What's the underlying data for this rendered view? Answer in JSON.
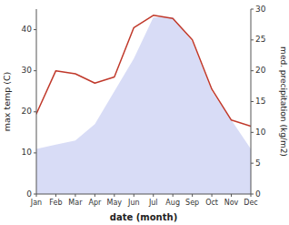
{
  "chart_data": {
    "type": "area",
    "categories": [
      "Jan",
      "Feb",
      "Mar",
      "Apr",
      "May",
      "Jun",
      "Jul",
      "Aug",
      "Sep",
      "Oct",
      "Nov",
      "Dec"
    ],
    "series": [
      {
        "type": "area",
        "color": "#b8c0ee",
        "values": [
          11,
          12,
          13,
          17,
          25,
          33,
          43,
          43,
          37,
          25,
          18,
          11
        ]
      },
      {
        "type": "line",
        "axis": "y2",
        "color": "#c0392b",
        "values": [
          13,
          20,
          19.5,
          18,
          19,
          27,
          29,
          28.5,
          25,
          17,
          12,
          11
        ]
      }
    ],
    "xlabel": "date (month)",
    "ylabel": "max temp (C)",
    "y2label": "med. precipitation (kg/m2)",
    "ylim": [
      0,
      45
    ],
    "yticks": [
      0,
      10,
      20,
      30,
      40
    ],
    "y2lim": [
      0,
      30
    ],
    "y2ticks": [
      0,
      5,
      10,
      15,
      20,
      25,
      30
    ],
    "grid": false
  }
}
